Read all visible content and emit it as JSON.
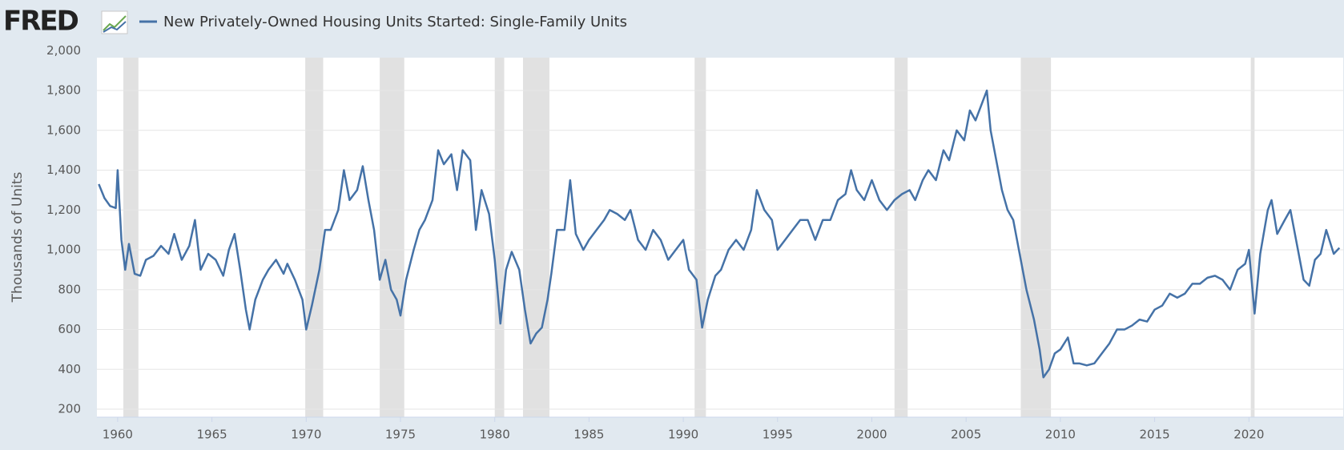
{
  "chart_data": {
    "type": "line",
    "logo": "FRED",
    "title": "New Privately-Owned Housing Units Started: Single-Family Units",
    "ylabel": "Thousands of Units",
    "xlim": [
      1958.9,
      2025
    ],
    "ylim": [
      160,
      1965
    ],
    "xticks": [
      1960,
      1965,
      1970,
      1975,
      1980,
      1985,
      1990,
      1995,
      2000,
      2005,
      2010,
      2015,
      2020
    ],
    "yticks": [
      200,
      400,
      600,
      800,
      {
        "value": 1000,
        "label": "1,000"
      },
      {
        "value": 1200,
        "label": "1,200"
      },
      {
        "value": 1400,
        "label": "1,400"
      },
      {
        "value": 1600,
        "label": "1,600"
      },
      {
        "value": 1800,
        "label": "1,800"
      },
      {
        "value": 2000,
        "label": "2,000"
      }
    ],
    "grid": true,
    "recession_color": "#e1e1e1",
    "recessions": [
      [
        1960.3,
        1961.1
      ],
      [
        1969.95,
        1970.9
      ],
      [
        1973.9,
        1975.2
      ],
      [
        1980.0,
        1980.5
      ],
      [
        1981.5,
        1982.9
      ],
      [
        1990.6,
        1991.2
      ],
      [
        2001.2,
        2001.9
      ],
      [
        2007.9,
        2009.5
      ],
      [
        2020.1,
        2020.3
      ]
    ],
    "series": [
      {
        "name": "New Privately-Owned Housing Units Started: Single-Family Units",
        "color": "#4572a7",
        "x": [
          1959.0,
          1959.3,
          1959.6,
          1959.9,
          1960.0,
          1960.2,
          1960.4,
          1960.6,
          1960.9,
          1961.2,
          1961.5,
          1961.9,
          1962.3,
          1962.7,
          1963.0,
          1963.4,
          1963.8,
          1964.1,
          1964.4,
          1964.8,
          1965.2,
          1965.6,
          1965.9,
          1966.2,
          1966.5,
          1966.8,
          1967.0,
          1967.3,
          1967.7,
          1968.0,
          1968.4,
          1968.8,
          1969.0,
          1969.4,
          1969.8,
          1970.0,
          1970.3,
          1970.7,
          1971.0,
          1971.3,
          1971.7,
          1972.0,
          1972.3,
          1972.7,
          1973.0,
          1973.3,
          1973.6,
          1973.9,
          1974.2,
          1974.5,
          1974.8,
          1975.0,
          1975.3,
          1975.7,
          1976.0,
          1976.3,
          1976.7,
          1977.0,
          1977.3,
          1977.7,
          1978.0,
          1978.3,
          1978.7,
          1979.0,
          1979.3,
          1979.7,
          1980.0,
          1980.3,
          1980.6,
          1980.9,
          1981.3,
          1981.6,
          1981.9,
          1982.2,
          1982.5,
          1982.8,
          1983.0,
          1983.3,
          1983.7,
          1984.0,
          1984.3,
          1984.7,
          1985.0,
          1985.4,
          1985.8,
          1986.1,
          1986.5,
          1986.9,
          1987.2,
          1987.6,
          1988.0,
          1988.4,
          1988.8,
          1989.2,
          1989.6,
          1990.0,
          1990.3,
          1990.7,
          1991.0,
          1991.3,
          1991.7,
          1992.0,
          1992.4,
          1992.8,
          1993.2,
          1993.6,
          1993.9,
          1994.3,
          1994.7,
          1995.0,
          1995.4,
          1995.8,
          1996.2,
          1996.6,
          1997.0,
          1997.4,
          1997.8,
          1998.2,
          1998.6,
          1998.9,
          1999.2,
          1999.6,
          2000.0,
          2000.4,
          2000.8,
          2001.2,
          2001.6,
          2002.0,
          2002.3,
          2002.7,
          2003.0,
          2003.4,
          2003.8,
          2004.1,
          2004.5,
          2004.9,
          2005.2,
          2005.5,
          2005.9,
          2006.1,
          2006.3,
          2006.6,
          2006.9,
          2007.2,
          2007.5,
          2007.9,
          2008.2,
          2008.6,
          2008.9,
          2009.1,
          2009.4,
          2009.7,
          2010.0,
          2010.4,
          2010.7,
          2011.0,
          2011.4,
          2011.8,
          2012.2,
          2012.6,
          2013.0,
          2013.4,
          2013.8,
          2014.2,
          2014.6,
          2015.0,
          2015.4,
          2015.8,
          2016.2,
          2016.6,
          2017.0,
          2017.4,
          2017.8,
          2018.2,
          2018.6,
          2019.0,
          2019.4,
          2019.8,
          2020.0,
          2020.3,
          2020.6,
          2021.0,
          2021.2,
          2021.5,
          2021.9,
          2022.2,
          2022.5,
          2022.9,
          2023.2,
          2023.5,
          2023.8,
          2024.1,
          2024.5,
          2024.8
        ],
        "values": [
          1330,
          1260,
          1220,
          1210,
          1400,
          1050,
          900,
          1030,
          880,
          870,
          950,
          970,
          1020,
          980,
          1080,
          950,
          1020,
          1150,
          900,
          980,
          950,
          870,
          1000,
          1080,
          900,
          700,
          600,
          750,
          850,
          900,
          950,
          880,
          930,
          850,
          750,
          600,
          720,
          900,
          1100,
          1100,
          1200,
          1400,
          1250,
          1300,
          1420,
          1250,
          1100,
          850,
          950,
          800,
          750,
          670,
          850,
          1000,
          1100,
          1150,
          1250,
          1500,
          1430,
          1480,
          1300,
          1500,
          1450,
          1100,
          1300,
          1180,
          950,
          630,
          900,
          990,
          900,
          700,
          530,
          580,
          610,
          750,
          880,
          1100,
          1100,
          1350,
          1080,
          1000,
          1050,
          1100,
          1150,
          1200,
          1180,
          1150,
          1200,
          1050,
          1000,
          1100,
          1050,
          950,
          1000,
          1050,
          900,
          850,
          610,
          750,
          870,
          900,
          1000,
          1050,
          1000,
          1100,
          1300,
          1200,
          1150,
          1000,
          1050,
          1100,
          1150,
          1150,
          1050,
          1150,
          1150,
          1250,
          1280,
          1400,
          1300,
          1250,
          1350,
          1250,
          1200,
          1250,
          1280,
          1300,
          1250,
          1350,
          1400,
          1350,
          1500,
          1450,
          1600,
          1550,
          1700,
          1650,
          1750,
          1800,
          1600,
          1450,
          1300,
          1200,
          1150,
          950,
          800,
          650,
          500,
          360,
          400,
          480,
          500,
          560,
          430,
          430,
          420,
          430,
          480,
          530,
          600,
          600,
          620,
          650,
          640,
          700,
          720,
          780,
          760,
          780,
          830,
          830,
          860,
          870,
          850,
          800,
          900,
          930,
          1000,
          680,
          980,
          1200,
          1250,
          1080,
          1150,
          1200,
          1050,
          850,
          820,
          950,
          980,
          1100,
          980,
          1010
        ]
      }
    ]
  }
}
